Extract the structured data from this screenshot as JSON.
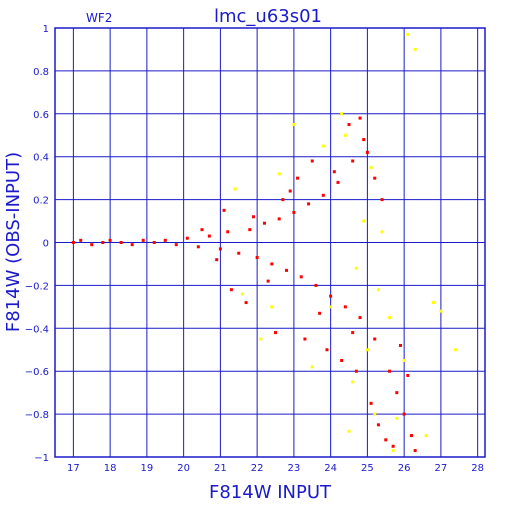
{
  "chart_data": {
    "type": "scatter",
    "title": "lmc_u63s01",
    "panel_label": "WF2",
    "xlabel": "F814W  INPUT",
    "ylabel": "F814W (OBS-INPUT)",
    "xlim": [
      16.5,
      28.2
    ],
    "ylim": [
      -1,
      1
    ],
    "x_ticks": [
      17,
      18,
      19,
      20,
      21,
      22,
      23,
      24,
      25,
      26,
      27,
      28
    ],
    "y_ticks": [
      -1,
      -0.8,
      -0.6,
      -0.4,
      -0.2,
      0,
      0.2,
      0.4,
      0.6,
      0.8,
      1
    ],
    "y_tick_labels": [
      "−1",
      "−0.8",
      "−0.6",
      "−0.4",
      "−0.2",
      "0",
      "0.2",
      "0.4",
      "0.6",
      "0.8",
      "1"
    ],
    "grid": true,
    "colors": {
      "frame": "#1a1acc",
      "main_points": "#ff0000",
      "outlier_points": "#ffff00"
    },
    "series": [
      {
        "color": "#ff0000",
        "points": [
          [
            17.0,
            0.0
          ],
          [
            17.2,
            0.01
          ],
          [
            17.5,
            -0.01
          ],
          [
            17.8,
            0.0
          ],
          [
            18.0,
            0.01
          ],
          [
            18.3,
            0.0
          ],
          [
            18.6,
            -0.01
          ],
          [
            18.9,
            0.01
          ],
          [
            19.2,
            0.0
          ],
          [
            19.5,
            0.01
          ],
          [
            19.8,
            -0.01
          ],
          [
            20.1,
            0.02
          ],
          [
            20.4,
            -0.02
          ],
          [
            20.7,
            0.03
          ],
          [
            21.0,
            -0.03
          ],
          [
            21.2,
            0.05
          ],
          [
            21.5,
            -0.05
          ],
          [
            21.8,
            0.06
          ],
          [
            22.0,
            -0.07
          ],
          [
            22.2,
            0.09
          ],
          [
            22.4,
            -0.1
          ],
          [
            22.6,
            0.11
          ],
          [
            22.8,
            -0.13
          ],
          [
            23.0,
            0.14
          ],
          [
            23.2,
            -0.16
          ],
          [
            23.4,
            0.18
          ],
          [
            23.6,
            -0.2
          ],
          [
            23.8,
            0.22
          ],
          [
            24.0,
            -0.25
          ],
          [
            24.2,
            0.28
          ],
          [
            24.4,
            -0.3
          ],
          [
            24.6,
            0.38
          ],
          [
            24.8,
            -0.35
          ],
          [
            25.0,
            0.42
          ],
          [
            25.2,
            -0.45
          ],
          [
            25.4,
            0.2
          ],
          [
            25.6,
            -0.6
          ],
          [
            25.8,
            -0.7
          ],
          [
            26.0,
            -0.8
          ],
          [
            26.2,
            -0.9
          ],
          [
            21.3,
            -0.22
          ],
          [
            21.7,
            -0.28
          ],
          [
            22.5,
            -0.42
          ],
          [
            23.1,
            0.3
          ],
          [
            23.5,
            0.38
          ],
          [
            23.9,
            -0.5
          ],
          [
            24.3,
            -0.55
          ],
          [
            24.5,
            0.55
          ],
          [
            24.7,
            -0.6
          ],
          [
            25.1,
            -0.75
          ],
          [
            25.3,
            -0.85
          ],
          [
            25.5,
            -0.92
          ],
          [
            25.7,
            -0.95
          ],
          [
            26.1,
            -0.62
          ],
          [
            24.9,
            0.48
          ],
          [
            23.7,
            -0.33
          ],
          [
            22.9,
            0.24
          ],
          [
            22.3,
            -0.18
          ],
          [
            21.9,
            0.12
          ],
          [
            20.9,
            -0.08
          ],
          [
            20.5,
            0.06
          ],
          [
            24.1,
            0.33
          ],
          [
            24.6,
            -0.42
          ],
          [
            25.2,
            0.3
          ],
          [
            25.9,
            -0.48
          ],
          [
            26.3,
            -0.97
          ],
          [
            24.8,
            0.58
          ],
          [
            23.3,
            -0.45
          ],
          [
            22.7,
            0.2
          ],
          [
            21.1,
            0.15
          ]
        ]
      },
      {
        "color": "#ffff00",
        "points": [
          [
            21.4,
            0.25
          ],
          [
            21.6,
            -0.24
          ],
          [
            22.1,
            -0.45
          ],
          [
            22.6,
            0.32
          ],
          [
            23.0,
            0.55
          ],
          [
            23.5,
            -0.58
          ],
          [
            24.0,
            -0.3
          ],
          [
            24.4,
            0.5
          ],
          [
            24.6,
            -0.65
          ],
          [
            24.9,
            0.1
          ],
          [
            25.0,
            -0.5
          ],
          [
            25.2,
            -0.8
          ],
          [
            25.4,
            0.05
          ],
          [
            25.6,
            -0.35
          ],
          [
            25.8,
            -0.82
          ],
          [
            26.0,
            -0.55
          ],
          [
            26.3,
            0.9
          ],
          [
            26.1,
            0.97
          ],
          [
            24.3,
            0.6
          ],
          [
            25.1,
            0.35
          ],
          [
            24.7,
            -0.12
          ],
          [
            25.3,
            -0.22
          ],
          [
            26.6,
            -0.9
          ],
          [
            27.0,
            -0.32
          ],
          [
            27.4,
            -0.5
          ],
          [
            26.8,
            -0.28
          ],
          [
            25.7,
            -0.97
          ],
          [
            24.5,
            -0.88
          ],
          [
            23.8,
            0.45
          ],
          [
            22.4,
            -0.3
          ]
        ]
      }
    ]
  }
}
